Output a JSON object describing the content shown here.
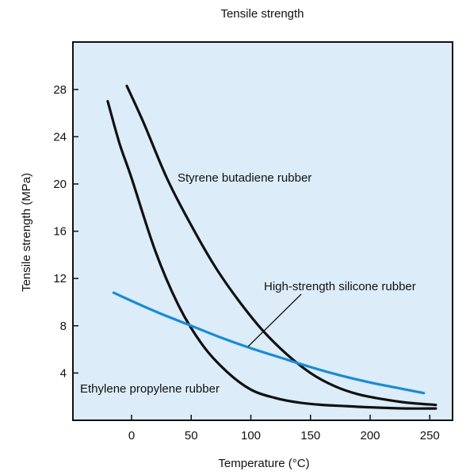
{
  "chart_data": {
    "type": "line",
    "title": "Tensile strength",
    "xlabel": "Temperature (°C)",
    "ylabel": "Tensile strength (MPa)",
    "xlim": [
      -25,
      260
    ],
    "ylim": [
      0,
      32
    ],
    "xticks": [
      0,
      50,
      100,
      150,
      200,
      250
    ],
    "yticks": [
      4,
      8,
      12,
      16,
      20,
      24,
      28
    ],
    "grid": false,
    "background_color": "#dcecf8",
    "series": [
      {
        "name": "Styrene butadiene rubber",
        "color": "#111111",
        "x": [
          -4,
          10,
          30,
          50,
          70,
          90,
          110,
          130,
          150,
          170,
          190,
          210,
          230,
          255
        ],
        "y": [
          28.3,
          25.2,
          20.4,
          16.5,
          13.0,
          10.1,
          7.6,
          5.6,
          4.0,
          2.9,
          2.2,
          1.8,
          1.5,
          1.3
        ]
      },
      {
        "name": "Ethylene propylene rubber",
        "color": "#111111",
        "x": [
          -20,
          -10,
          0,
          20,
          40,
          60,
          80,
          100,
          120,
          140,
          160,
          180,
          200,
          230,
          255
        ],
        "y": [
          27.0,
          23.4,
          20.5,
          14.3,
          9.6,
          6.3,
          4.1,
          2.6,
          1.9,
          1.5,
          1.3,
          1.2,
          1.1,
          1.0,
          1.0
        ]
      },
      {
        "name": "High-strength silicone rubber",
        "color": "#1a8ad4",
        "x": [
          -15,
          0,
          25,
          50,
          75,
          100,
          125,
          150,
          175,
          200,
          225,
          245
        ],
        "y": [
          10.8,
          10.1,
          9.0,
          8.0,
          7.0,
          6.1,
          5.3,
          4.5,
          3.8,
          3.2,
          2.7,
          2.3
        ]
      }
    ],
    "annotations": [
      {
        "text": "Styrene butadiene rubber",
        "series": "Styrene butadiene rubber"
      },
      {
        "text": "High-strength silicone rubber",
        "series": "High-strength silicone rubber"
      },
      {
        "text": "Ethylene propylene rubber",
        "series": "Ethylene propylene rubber"
      }
    ]
  }
}
